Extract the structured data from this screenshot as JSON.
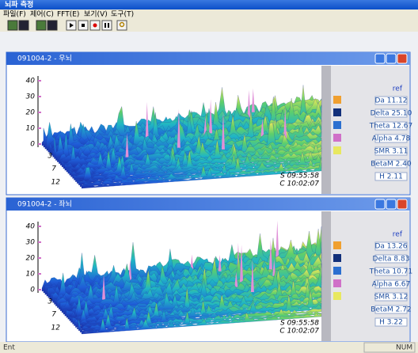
{
  "app_title": "뇌파 측정",
  "menu": [
    "파일(F)",
    "제어(C)",
    "FFT(E)",
    "보기(V)",
    "도구(T)"
  ],
  "windows": [
    {
      "title": "091004-2 - 우뇌",
      "z_ticks": [
        "40",
        "30",
        "20",
        "10",
        "0"
      ],
      "y_ticks": [
        "3",
        "7",
        "12"
      ],
      "time_start": "S 09:55:58",
      "time_current": "C 10:02:07",
      "legend_header": "ref",
      "legend": [
        "Da 11.12",
        "Delta 25.10",
        "Theta 12.67",
        "Alpha 4.78",
        "SMR 3.11",
        "BetaM 2.40",
        "H 2.11"
      ]
    },
    {
      "title": "091004-2 - 좌뇌",
      "z_ticks": [
        "40",
        "30",
        "20",
        "10",
        "0"
      ],
      "y_ticks": [
        "3",
        "7",
        "12"
      ],
      "time_start": "S 09:55:58",
      "time_current": "C 10:02:07",
      "legend_header": "ref",
      "legend": [
        "Da 13.26",
        "Delta 8.83",
        "Theta 10.71",
        "Alpha 6.67",
        "SMR 3.12",
        "BetaM 2.72",
        "H 3.22"
      ]
    }
  ],
  "status": {
    "left": "Ent",
    "right": "NUM"
  }
}
